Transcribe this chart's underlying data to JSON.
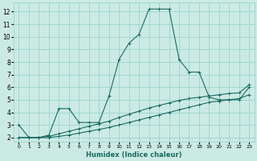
{
  "xlabel": "Humidex (Indice chaleur)",
  "bg_color": "#cceae4",
  "grid_color": "#99d5cc",
  "line_color": "#1a6b60",
  "xlim": [
    -0.5,
    23.5
  ],
  "ylim": [
    1.7,
    12.7
  ],
  "xticks": [
    0,
    1,
    2,
    3,
    4,
    5,
    6,
    7,
    8,
    9,
    10,
    11,
    12,
    13,
    14,
    15,
    16,
    17,
    18,
    19,
    20,
    21,
    22,
    23
  ],
  "yticks": [
    2,
    3,
    4,
    5,
    6,
    7,
    8,
    9,
    10,
    11,
    12
  ],
  "series1_x": [
    0,
    1,
    2,
    3,
    4,
    5,
    6,
    7,
    8,
    9,
    10,
    11,
    12,
    13,
    14,
    15,
    16,
    17,
    18,
    19,
    20,
    21,
    22,
    23
  ],
  "series1_y": [
    3.0,
    2.0,
    2.0,
    2.2,
    4.3,
    4.3,
    3.2,
    3.2,
    3.2,
    5.3,
    8.2,
    9.5,
    10.2,
    12.2,
    12.2,
    12.2,
    8.2,
    7.2,
    7.2,
    5.2,
    5.0,
    5.0,
    5.0,
    6.0
  ],
  "series2_x": [
    0,
    1,
    2,
    3,
    4,
    5,
    6,
    7,
    8,
    9,
    10,
    11,
    12,
    13,
    14,
    15,
    16,
    17,
    18,
    19,
    20,
    21,
    22,
    23
  ],
  "series2_y": [
    2.0,
    2.0,
    2.0,
    2.1,
    2.3,
    2.5,
    2.7,
    2.9,
    3.1,
    3.3,
    3.6,
    3.85,
    4.1,
    4.35,
    4.55,
    4.75,
    4.95,
    5.1,
    5.2,
    5.3,
    5.4,
    5.5,
    5.55,
    6.2
  ],
  "series3_x": [
    0,
    1,
    2,
    3,
    4,
    5,
    6,
    7,
    8,
    9,
    10,
    11,
    12,
    13,
    14,
    15,
    16,
    17,
    18,
    19,
    20,
    21,
    22,
    23
  ],
  "series3_y": [
    2.0,
    2.0,
    2.0,
    2.0,
    2.1,
    2.2,
    2.35,
    2.5,
    2.65,
    2.8,
    3.0,
    3.2,
    3.4,
    3.6,
    3.8,
    4.0,
    4.2,
    4.4,
    4.6,
    4.8,
    4.9,
    5.0,
    5.1,
    5.4
  ]
}
